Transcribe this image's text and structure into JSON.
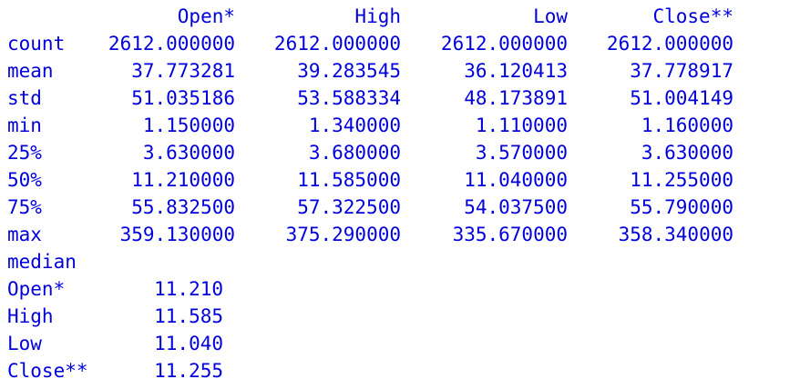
{
  "output": {
    "describe": {
      "columns": [
        "Open*",
        "High",
        "Low",
        "Close**"
      ],
      "rows": [
        {
          "stat": "count",
          "values": [
            "2612.000000",
            "2612.000000",
            "2612.000000",
            "2612.000000"
          ]
        },
        {
          "stat": "mean",
          "values": [
            "37.773281",
            "39.283545",
            "36.120413",
            "37.778917"
          ]
        },
        {
          "stat": "std",
          "values": [
            "51.035186",
            "53.588334",
            "48.173891",
            "51.004149"
          ]
        },
        {
          "stat": "min",
          "values": [
            "1.150000",
            "1.340000",
            "1.110000",
            "1.160000"
          ]
        },
        {
          "stat": "25%",
          "values": [
            "3.630000",
            "3.680000",
            "3.570000",
            "3.630000"
          ]
        },
        {
          "stat": "50%",
          "values": [
            "11.210000",
            "11.585000",
            "11.040000",
            "11.255000"
          ]
        },
        {
          "stat": "75%",
          "values": [
            "55.832500",
            "57.322500",
            "54.037500",
            "55.790000"
          ]
        },
        {
          "stat": "max",
          "values": [
            "359.130000",
            "375.290000",
            "335.670000",
            "358.340000"
          ]
        }
      ]
    },
    "median": {
      "header": "median",
      "rows": [
        {
          "name": "Open*",
          "value": "11.210"
        },
        {
          "name": "High",
          "value": "11.585"
        },
        {
          "name": "Low",
          "value": "11.040"
        },
        {
          "name": "Close**",
          "value": "11.255"
        }
      ]
    }
  },
  "colors": {
    "text": "#0000dd",
    "background": "#ffffff"
  }
}
